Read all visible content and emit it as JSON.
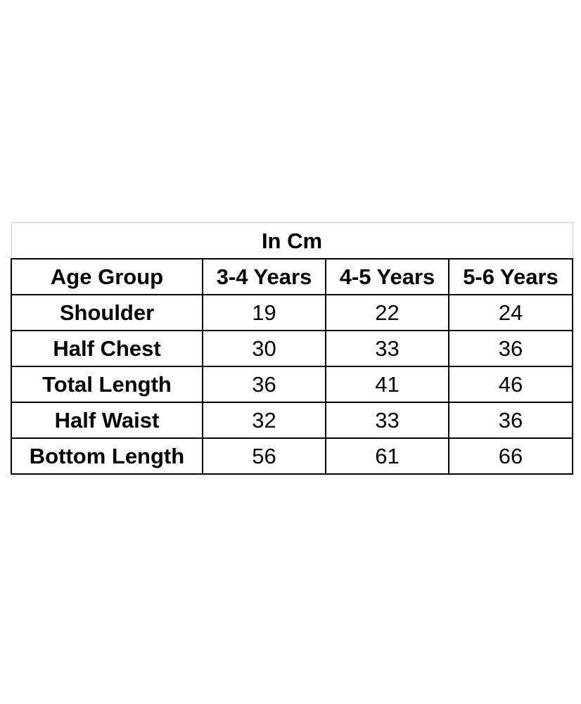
{
  "chart_data": {
    "type": "table",
    "title": "In Cm",
    "header_label": "Age Group",
    "columns": [
      "3-4 Years",
      "4-5 Years",
      "5-6 Years"
    ],
    "rows": [
      {
        "label": "Shoulder",
        "values": [
          19,
          22,
          24
        ]
      },
      {
        "label": "Half Chest",
        "values": [
          30,
          33,
          36
        ]
      },
      {
        "label": "Total Length",
        "values": [
          36,
          41,
          46
        ]
      },
      {
        "label": "Half Waist",
        "values": [
          32,
          33,
          36
        ]
      },
      {
        "label": "Bottom Length",
        "values": [
          56,
          61,
          66
        ]
      }
    ]
  }
}
